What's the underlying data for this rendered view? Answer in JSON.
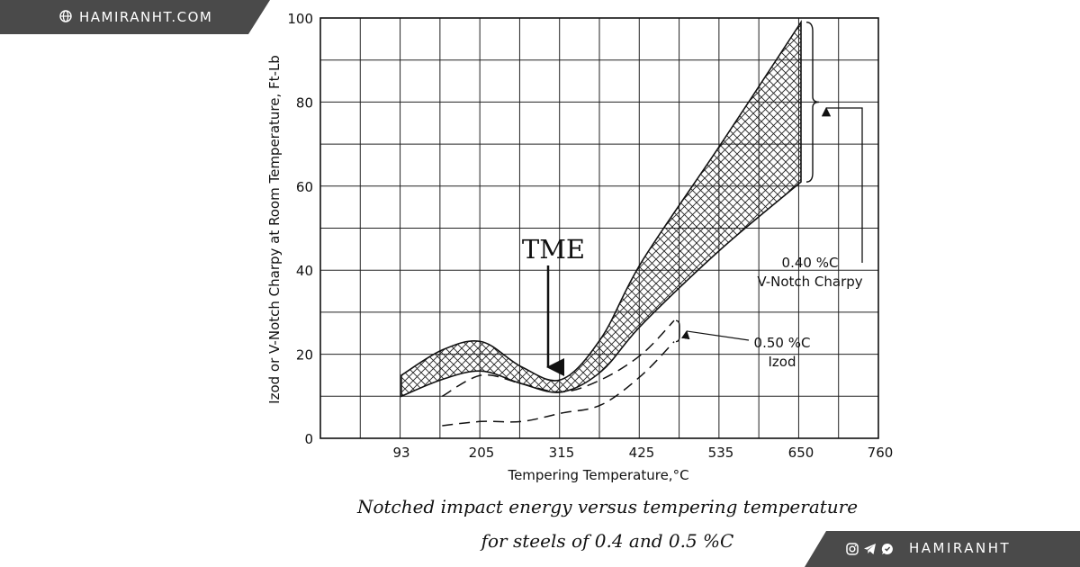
{
  "site": {
    "label": "HAMIRANHT.COM",
    "icon": "globe-icon"
  },
  "social": {
    "label": "HAMIRANHT",
    "icons": [
      "instagram-icon",
      "telegram-icon",
      "whatsapp-icon"
    ]
  },
  "chart_data": {
    "type": "area",
    "xlabel": "Tempering Temperature,°C",
    "ylabel": "Izod or V-Notch Charpy at Room Temperature, Ft-Lb",
    "x_tick_labels": [
      "93",
      "205",
      "315",
      "425",
      "535",
      "650",
      "760"
    ],
    "y_ticks": [
      0,
      20,
      40,
      60,
      80,
      100
    ],
    "ylim": [
      0,
      100
    ],
    "grid": true,
    "annotation": "TME",
    "series": [
      {
        "name": "0.40 %C V-Notch Charpy",
        "label_lines": [
          "0.40 %C",
          "V-Notch Charpy"
        ],
        "x": [
          93,
          150,
          205,
          260,
          315,
          370,
          425,
          535,
          650
        ],
        "upper": [
          15,
          21,
          23,
          17,
          14,
          24,
          42,
          70,
          99
        ],
        "lower": [
          10,
          14,
          16,
          13,
          11,
          16,
          27,
          45,
          61
        ]
      },
      {
        "name": "0.50 %C Izod",
        "label_lines": [
          "0.50 %C",
          "Izod"
        ],
        "x": [
          150,
          205,
          260,
          315,
          370,
          425,
          470
        ],
        "upper": [
          10,
          15,
          13,
          11,
          14,
          20,
          28
        ],
        "lower": [
          3,
          4,
          4,
          6,
          8,
          15,
          23
        ]
      }
    ],
    "caption": [
      "Notched impact energy versus tempering temperature",
      "for steels of 0.4 and 0.5 %C"
    ]
  }
}
